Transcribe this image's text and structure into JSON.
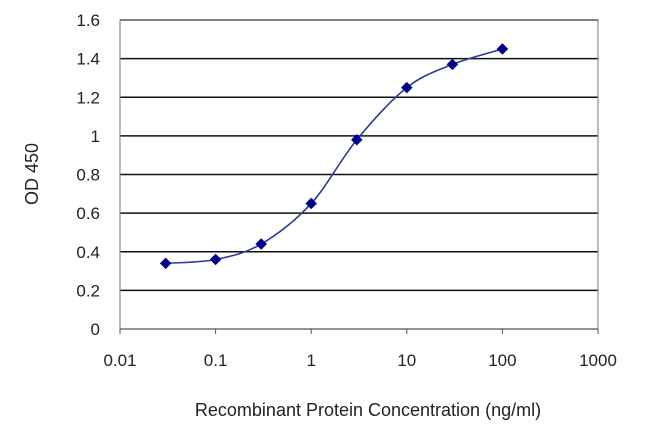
{
  "chart_data": {
    "type": "line",
    "x_scale": "log",
    "xlabel": "Recombinant Protein Concentration (ng/ml)",
    "ylabel": "OD 450",
    "xlim": [
      0.01,
      1000
    ],
    "ylim": [
      0,
      1.6
    ],
    "x_ticks": [
      0.01,
      0.1,
      1,
      10,
      100,
      1000
    ],
    "x_tick_labels": [
      "0.01",
      "0.1",
      "1",
      "10",
      "100",
      "1000"
    ],
    "y_ticks": [
      0,
      0.2,
      0.4,
      0.6,
      0.8,
      1,
      1.2,
      1.4,
      1.6
    ],
    "y_tick_labels": [
      "0",
      "0.2",
      "0.4",
      "0.6",
      "0.8",
      "1",
      "1.2",
      "1.4",
      "1.6"
    ],
    "grid": "horizontal",
    "series": [
      {
        "x": [
          0.03,
          0.1,
          0.3,
          1,
          3,
          10,
          30,
          100
        ],
        "y": [
          0.34,
          0.36,
          0.44,
          0.65,
          0.98,
          1.25,
          1.37,
          1.45
        ],
        "color": "#2b3b9a",
        "marker": "diamond",
        "marker_color": "#00008b"
      }
    ]
  }
}
